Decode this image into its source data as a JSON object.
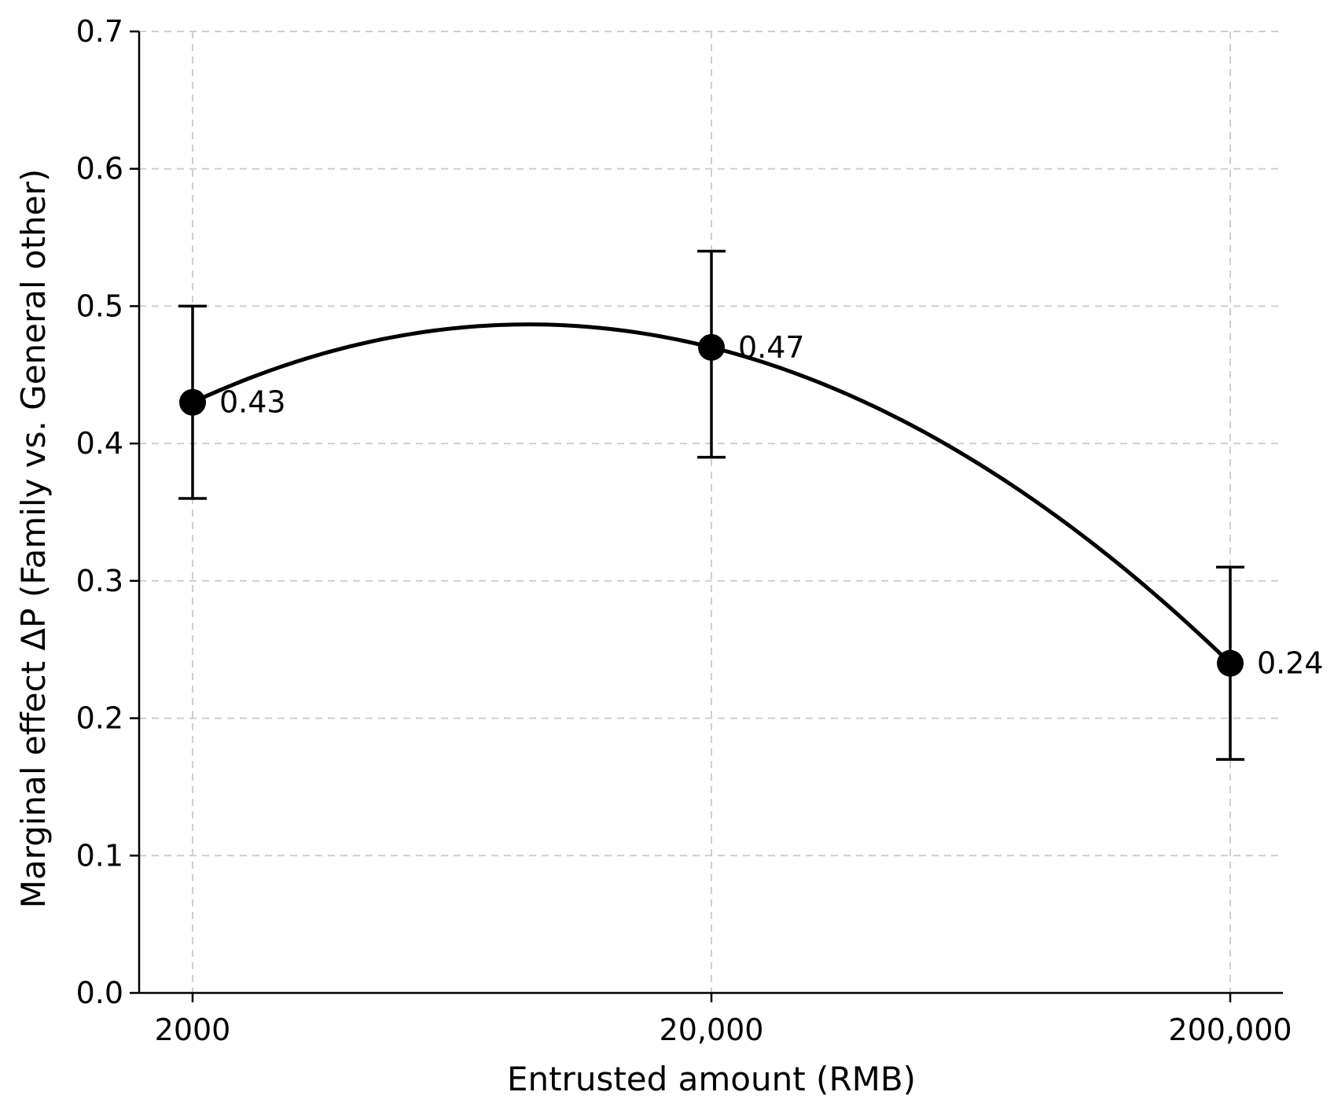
{
  "chart_data": {
    "type": "line",
    "title": "",
    "xlabel": "Entrusted amount (RMB)",
    "ylabel": "Marginal effect ΔP (Family vs. General other)",
    "x_scale": "log",
    "categories": [
      "2000",
      "20,000",
      "200,000"
    ],
    "x": [
      2000,
      20000,
      200000
    ],
    "values": [
      0.43,
      0.47,
      0.24
    ],
    "value_labels": [
      "0.43",
      "0.47",
      "0.24"
    ],
    "error_low": [
      0.36,
      0.39,
      0.17
    ],
    "error_high": [
      0.5,
      0.54,
      0.31
    ],
    "ylim": [
      0,
      0.7
    ],
    "yticks": [
      0.0,
      0.1,
      0.2,
      0.3,
      0.4,
      0.5,
      0.6,
      0.7
    ],
    "ytick_labels": [
      "0.0",
      "0.1",
      "0.2",
      "0.3",
      "0.4",
      "0.5",
      "0.6",
      "0.7"
    ],
    "grid": true,
    "legend": "none",
    "curve": "smooth quadratic fit through points",
    "colors": {
      "line": "#000000",
      "grid": "#cfcfcf"
    }
  }
}
